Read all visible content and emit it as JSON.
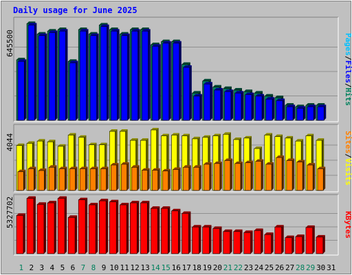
{
  "chart_data": [
    {
      "type": "bar",
      "panel": "pages-files-hits",
      "title": "Daily usage for June 2025",
      "ymax_label": "645500",
      "ylim": [
        0,
        645500
      ],
      "categories": [
        "1",
        "2",
        "3",
        "4",
        "5",
        "6",
        "7",
        "8",
        "9",
        "10",
        "11",
        "12",
        "13",
        "14",
        "15",
        "16",
        "17",
        "18",
        "19",
        "20",
        "21",
        "22",
        "23",
        "24",
        "25",
        "26",
        "27",
        "28",
        "29",
        "30",
        "31"
      ],
      "series": [
        {
          "name": "Hits",
          "values": [
            400000,
            640000,
            570000,
            590000,
            600000,
            390000,
            600000,
            570000,
            630000,
            600000,
            570000,
            600000,
            600000,
            500000,
            520000,
            520000,
            370000,
            180000,
            260000,
            220000,
            210000,
            200000,
            190000,
            180000,
            160000,
            150000,
            100000,
            90000,
            100000,
            100000,
            0
          ]
        },
        {
          "name": "Files",
          "values": [
            390000,
            630000,
            560000,
            580000,
            590000,
            380000,
            590000,
            560000,
            620000,
            590000,
            560000,
            590000,
            590000,
            490000,
            510000,
            510000,
            350000,
            160000,
            240000,
            200000,
            190000,
            180000,
            170000,
            160000,
            140000,
            130000,
            90000,
            80000,
            90000,
            90000,
            0
          ]
        },
        {
          "name": "Pages",
          "values": [
            0,
            0,
            0,
            0,
            0,
            0,
            0,
            0,
            0,
            0,
            0,
            0,
            0,
            0,
            0,
            0,
            0,
            0,
            0,
            0,
            0,
            0,
            0,
            0,
            0,
            0,
            0,
            0,
            0,
            0,
            0
          ]
        }
      ],
      "legend_right": [
        "Pages",
        "/",
        "Files",
        "/",
        "Hits"
      ],
      "colors": {
        "Pages": "#00C0FF",
        "Files": "#0000FF",
        "Hits": "#00805C"
      }
    },
    {
      "type": "bar",
      "panel": "sites-visits",
      "ymax_label": "4044",
      "ylim": [
        0,
        4044
      ],
      "categories": [
        "1",
        "2",
        "3",
        "4",
        "5",
        "6",
        "7",
        "8",
        "9",
        "10",
        "11",
        "12",
        "13",
        "14",
        "15",
        "16",
        "17",
        "18",
        "19",
        "20",
        "21",
        "22",
        "23",
        "24",
        "25",
        "26",
        "27",
        "28",
        "29",
        "30",
        "31"
      ],
      "series": [
        {
          "name": "Visits",
          "values": [
            3000,
            3150,
            3300,
            3250,
            2950,
            3700,
            3550,
            3050,
            3050,
            3950,
            3950,
            3350,
            3350,
            4044,
            3650,
            3700,
            3650,
            3450,
            3550,
            3650,
            3750,
            3400,
            3500,
            2800,
            3700,
            3600,
            3500,
            3300,
            3650,
            3350,
            0
          ]
        },
        {
          "name": "Sites",
          "values": [
            1250,
            1450,
            1330,
            1550,
            1450,
            1450,
            1450,
            1450,
            1450,
            1700,
            1750,
            1550,
            1350,
            1350,
            1300,
            1400,
            1550,
            1550,
            1750,
            1800,
            2000,
            1800,
            1850,
            1950,
            1750,
            2200,
            2000,
            1900,
            1700,
            1450,
            0
          ]
        }
      ],
      "legend_right": [
        "Sites",
        "/",
        "Visits"
      ],
      "colors": {
        "Visits": "#FFFF00",
        "Sites": "#FF8000"
      }
    },
    {
      "type": "bar",
      "panel": "kbytes",
      "ymax_label": "5327702",
      "ylim": [
        0,
        5327702
      ],
      "categories": [
        "1",
        "2",
        "3",
        "4",
        "5",
        "6",
        "7",
        "8",
        "9",
        "10",
        "11",
        "12",
        "13",
        "14",
        "15",
        "16",
        "17",
        "18",
        "19",
        "20",
        "21",
        "22",
        "23",
        "24",
        "25",
        "26",
        "27",
        "28",
        "29",
        "30",
        "31"
      ],
      "series": [
        {
          "name": "KBytes",
          "values": [
            3800000,
            5500000,
            4900000,
            5050000,
            5500000,
            3600000,
            5350000,
            4850000,
            5250000,
            5150000,
            4850000,
            5050000,
            5050000,
            4500000,
            4500000,
            4250000,
            4000000,
            2650000,
            2650000,
            2500000,
            2200000,
            2200000,
            2100000,
            2300000,
            1900000,
            2650000,
            1600000,
            1700000,
            2600000,
            1650000,
            0
          ]
        }
      ],
      "legend_right": [
        "KBytes"
      ],
      "colors": {
        "KBytes": "#FF0000"
      }
    }
  ],
  "x_axis": {
    "labels": [
      "1",
      "2",
      "3",
      "4",
      "5",
      "6",
      "7",
      "8",
      "9",
      "10",
      "11",
      "12",
      "13",
      "14",
      "15",
      "16",
      "17",
      "18",
      "19",
      "20",
      "21",
      "22",
      "23",
      "24",
      "25",
      "26",
      "27",
      "28",
      "29",
      "30",
      "31"
    ],
    "weekend_days": [
      "1",
      "7",
      "8",
      "14",
      "15",
      "21",
      "22",
      "28",
      "29"
    ],
    "weekend_color": "#00805C",
    "weekday_color": "#000000"
  },
  "colors": {
    "background": "#C0C0C0",
    "title": "#0000FF",
    "gridline": "#808080"
  }
}
